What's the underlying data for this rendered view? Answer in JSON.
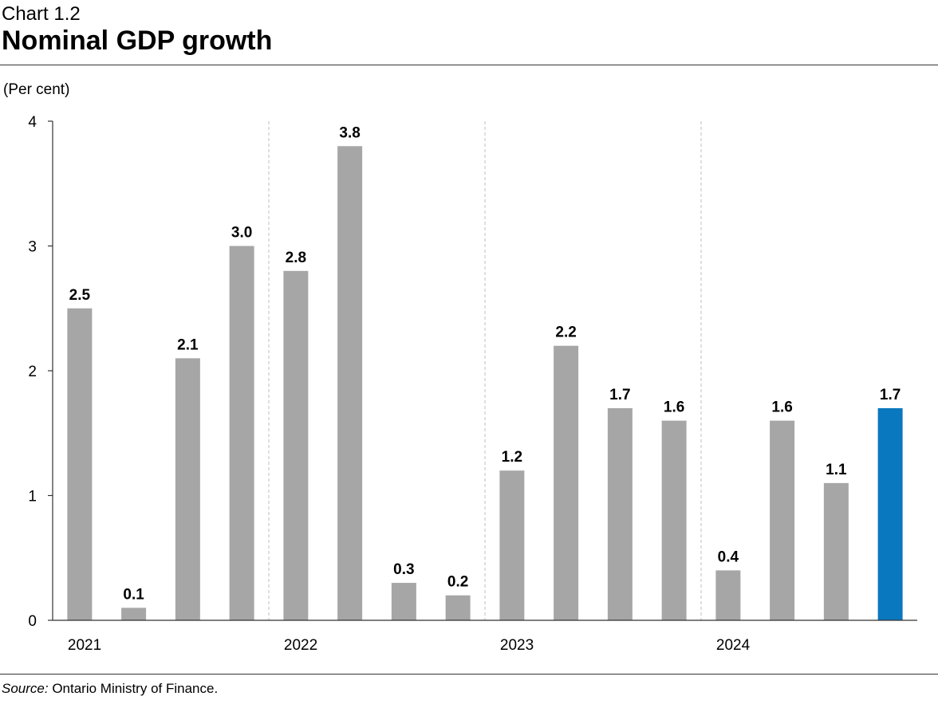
{
  "header": {
    "chart_number": "Chart 1.2",
    "title": "Nominal GDP growth"
  },
  "footer": {
    "source_label": "Source:",
    "source_text": " Ontario Ministry of Finance."
  },
  "colors": {
    "bar": "#a6a6a6",
    "highlight": "#0a78be",
    "axis": "#333333",
    "separator": "#bfbfbf"
  },
  "chart_data": {
    "type": "bar",
    "title": "Nominal GDP growth",
    "ylabel": "(Per cent)",
    "xlabel": "",
    "ylim": [
      0,
      4
    ],
    "yticks": [
      0,
      1,
      2,
      3,
      4
    ],
    "ytick_labels": [
      "0",
      "1",
      "2",
      "3",
      "4"
    ],
    "years": [
      "2021",
      "2022",
      "2023",
      "2024"
    ],
    "quarters_per_year": 4,
    "values": [
      2.5,
      0.1,
      2.1,
      3.0,
      2.8,
      3.8,
      0.3,
      0.2,
      1.2,
      2.2,
      1.7,
      1.6,
      0.4,
      1.6,
      1.1,
      1.7
    ],
    "value_labels": [
      "2.5",
      "0.1",
      "2.1",
      "3.0",
      "2.8",
      "3.8",
      "0.3",
      "0.2",
      "1.2",
      "2.2",
      "1.7",
      "1.6",
      "0.4",
      "1.6",
      "1.1",
      "1.7"
    ],
    "highlighted_index": 15,
    "grid": false,
    "legend": "none"
  }
}
